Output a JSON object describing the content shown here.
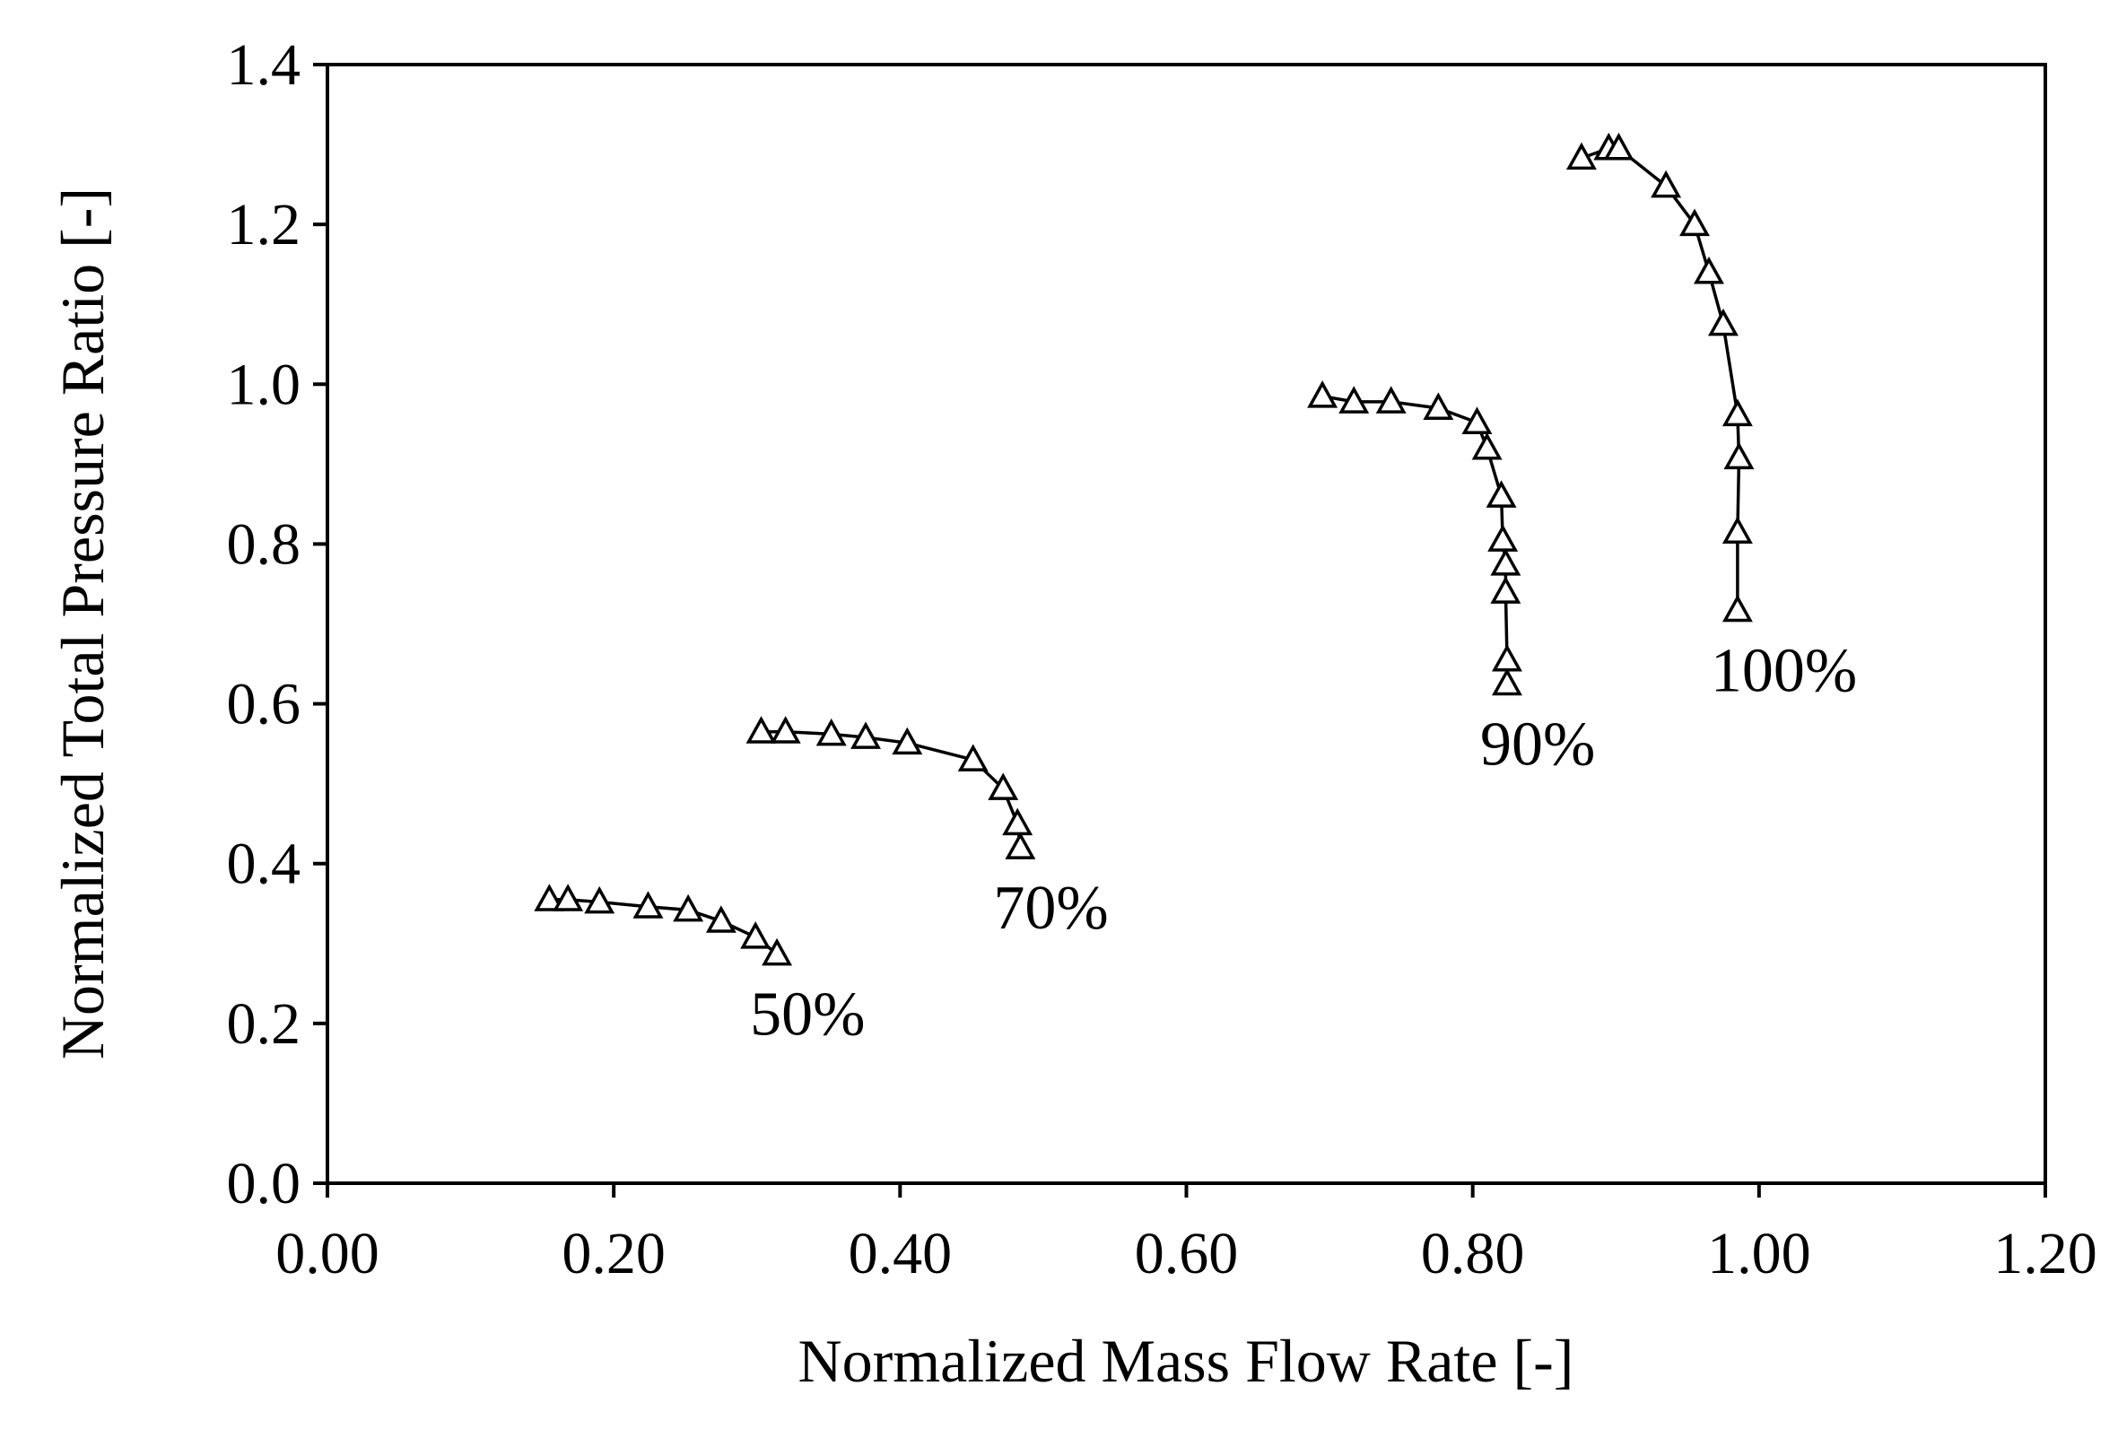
{
  "chart_data": {
    "type": "line",
    "title": "",
    "xlabel": "Normalized Mass Flow Rate [-]",
    "ylabel": "Normalized Total Pressure Ratio [-]",
    "xlim": [
      0.0,
      1.2
    ],
    "ylim": [
      0.0,
      1.4
    ],
    "x_ticks": [
      "0.00",
      "0.20",
      "0.40",
      "0.60",
      "0.80",
      "1.00",
      "1.20"
    ],
    "y_ticks": [
      "0.0",
      "0.2",
      "0.4",
      "0.6",
      "0.8",
      "1.0",
      "1.2",
      "1.4"
    ],
    "grid": false,
    "marker": "open-triangle",
    "line_color": "#000000",
    "series": [
      {
        "name": "50%",
        "label": "50%",
        "x": [
          0.155,
          0.168,
          0.19,
          0.224,
          0.252,
          0.275,
          0.299,
          0.314
        ],
        "y": [
          0.355,
          0.355,
          0.352,
          0.346,
          0.342,
          0.328,
          0.308,
          0.287
        ]
      },
      {
        "name": "70%",
        "label": "70%",
        "x": [
          0.303,
          0.32,
          0.352,
          0.376,
          0.405,
          0.451,
          0.472,
          0.482,
          0.484
        ],
        "y": [
          0.565,
          0.565,
          0.562,
          0.558,
          0.551,
          0.53,
          0.494,
          0.45,
          0.42
        ]
      },
      {
        "name": "90%",
        "label": "90%",
        "x": [
          0.695,
          0.717,
          0.743,
          0.776,
          0.803,
          0.81,
          0.82,
          0.821,
          0.823,
          0.823,
          0.824,
          0.824
        ],
        "y": [
          0.985,
          0.978,
          0.978,
          0.97,
          0.952,
          0.92,
          0.86,
          0.805,
          0.775,
          0.74,
          0.655,
          0.625
        ]
      },
      {
        "name": "100%",
        "label": "100%",
        "x": [
          0.876,
          0.895,
          0.902,
          0.935,
          0.955,
          0.965,
          0.975,
          0.985,
          0.986,
          0.985,
          0.985
        ],
        "y": [
          1.283,
          1.295,
          1.295,
          1.248,
          1.2,
          1.14,
          1.075,
          0.962,
          0.908,
          0.815,
          0.717
        ]
      }
    ]
  }
}
